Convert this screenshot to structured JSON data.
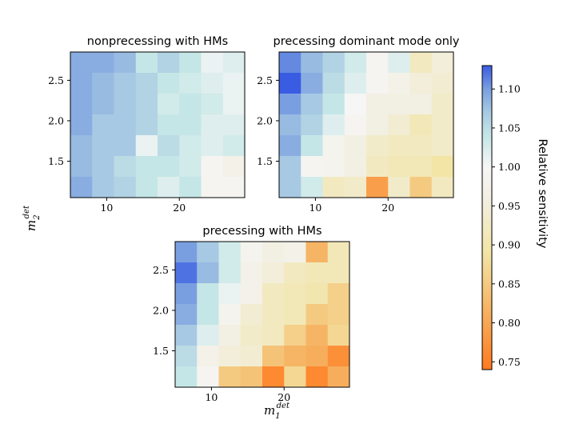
{
  "chart_data": {
    "type": "heatmap",
    "xlabel": "m_1^det",
    "ylabel": "m_2^det",
    "xlabel_parts": {
      "base": "m",
      "sub": "1",
      "sup": "det"
    },
    "ylabel_parts": {
      "base": "m",
      "sub": "2",
      "sup": "det"
    },
    "x_ticks": [
      {
        "value": 10,
        "label": "10"
      },
      {
        "value": 20,
        "label": "20"
      }
    ],
    "y_ticks": [
      {
        "value": 1.5,
        "label": "1.5"
      },
      {
        "value": 2.0,
        "label": "2.0"
      },
      {
        "value": 2.5,
        "label": "2.5"
      }
    ],
    "xlim": [
      5,
      29
    ],
    "ylim": [
      1.05,
      2.85
    ],
    "grid_cols": 8,
    "grid_rows": 7,
    "colorbar": {
      "label": "Relative sensitivity",
      "range": [
        0.74,
        1.13
      ],
      "ticks": [
        {
          "value": 1.1,
          "label": "1.10"
        },
        {
          "value": 1.05,
          "label": "1.05"
        },
        {
          "value": 1.0,
          "label": "1.00"
        },
        {
          "value": 0.95,
          "label": "0.95"
        },
        {
          "value": 0.9,
          "label": "0.90"
        },
        {
          "value": 0.85,
          "label": "0.85"
        },
        {
          "value": 0.8,
          "label": "0.80"
        },
        {
          "value": 0.75,
          "label": "0.75"
        }
      ],
      "stops": [
        {
          "value": 0.74,
          "color": "#ff7a1f"
        },
        {
          "value": 0.82,
          "color": "#f6b565"
        },
        {
          "value": 0.89,
          "color": "#f2e5a6"
        },
        {
          "value": 0.96,
          "color": "#f2efe3"
        },
        {
          "value": 1.0,
          "color": "#f6f6f6"
        },
        {
          "value": 1.04,
          "color": "#c5e6e6"
        },
        {
          "value": 1.07,
          "color": "#a7c9e3"
        },
        {
          "value": 1.1,
          "color": "#7a9fe0"
        },
        {
          "value": 1.13,
          "color": "#3a5ce3"
        }
      ]
    },
    "panels": [
      {
        "title": "nonprecessing with HMs",
        "values_top_to_bottom": [
          [
            1.09,
            1.09,
            1.08,
            1.04,
            1.06,
            1.04,
            1.01,
            1.02
          ],
          [
            1.09,
            1.08,
            1.07,
            1.06,
            1.04,
            1.03,
            1.02,
            1.01
          ],
          [
            1.09,
            1.08,
            1.07,
            1.06,
            1.03,
            1.04,
            1.03,
            1.01
          ],
          [
            1.09,
            1.07,
            1.07,
            1.06,
            1.04,
            1.04,
            1.02,
            1.02
          ],
          [
            1.08,
            1.07,
            1.07,
            1.01,
            1.05,
            1.03,
            1.02,
            1.03
          ],
          [
            1.08,
            1.07,
            1.05,
            1.04,
            1.04,
            1.03,
            0.99,
            0.97
          ],
          [
            1.09,
            1.07,
            1.06,
            1.04,
            1.02,
            1.04,
            0.99,
            0.99
          ]
        ]
      },
      {
        "title": "precessing dominant mode only",
        "values_top_to_bottom": [
          [
            1.11,
            1.08,
            1.06,
            1.03,
            0.99,
            1.02,
            0.92,
            0.95
          ],
          [
            1.13,
            1.09,
            1.05,
            1.02,
            0.99,
            0.97,
            0.95,
            0.94
          ],
          [
            1.1,
            1.07,
            1.04,
            1.0,
            0.96,
            0.96,
            0.96,
            0.93
          ],
          [
            1.08,
            1.06,
            1.02,
            0.99,
            0.96,
            0.94,
            0.91,
            0.93
          ],
          [
            1.09,
            1.04,
            0.98,
            0.96,
            0.93,
            0.92,
            0.92,
            0.93
          ],
          [
            1.07,
            0.99,
            0.98,
            0.96,
            0.92,
            0.91,
            0.91,
            0.89
          ],
          [
            1.07,
            1.03,
            0.92,
            0.93,
            0.79,
            0.93,
            0.85,
            0.92
          ]
        ]
      },
      {
        "title": "precessing with HMs",
        "values_top_to_bottom": [
          [
            1.1,
            1.07,
            1.03,
            0.98,
            0.96,
            0.97,
            0.82,
            0.91
          ],
          [
            1.12,
            1.08,
            1.03,
            0.97,
            0.95,
            0.92,
            0.91,
            0.91
          ],
          [
            1.1,
            1.04,
            1.01,
            0.97,
            0.92,
            0.91,
            0.9,
            0.86
          ],
          [
            1.09,
            1.04,
            0.98,
            0.94,
            0.92,
            0.91,
            0.85,
            0.86
          ],
          [
            1.07,
            1.02,
            0.96,
            0.93,
            0.92,
            0.86,
            0.82,
            0.87
          ],
          [
            1.05,
            0.97,
            0.95,
            0.94,
            0.84,
            0.82,
            0.81,
            0.77
          ],
          [
            1.04,
            0.99,
            0.85,
            0.84,
            0.76,
            0.87,
            0.76,
            0.81
          ]
        ]
      }
    ]
  }
}
